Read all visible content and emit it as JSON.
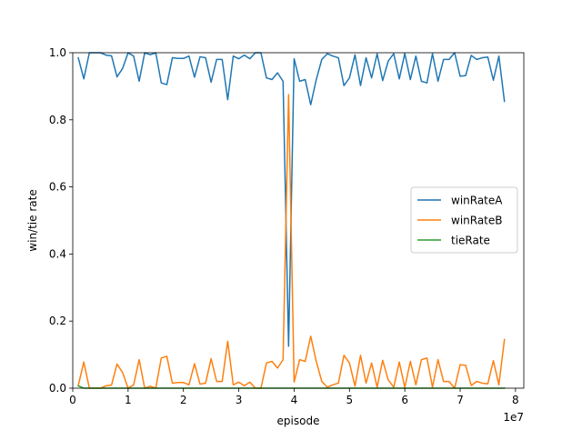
{
  "chart_data": {
    "type": "line",
    "xlabel": "episode",
    "ylabel": "win/tie rate",
    "x_offset_label": "1e7",
    "xlim": [
      0,
      8.15
    ],
    "ylim": [
      0,
      1.0
    ],
    "x_ticks": [
      "0",
      "1",
      "2",
      "3",
      "4",
      "5",
      "6",
      "7",
      "8"
    ],
    "y_ticks": [
      "0.0",
      "0.2",
      "0.4",
      "0.6",
      "0.8",
      "1.0"
    ],
    "grid": false,
    "legend_position": "center-right",
    "x": [
      0.1,
      0.2,
      0.3,
      0.4,
      0.5,
      0.6,
      0.7,
      0.8,
      0.9,
      1.0,
      1.1,
      1.2,
      1.3,
      1.4,
      1.5,
      1.6,
      1.7,
      1.8,
      1.9,
      2.0,
      2.1,
      2.2,
      2.3,
      2.4,
      2.5,
      2.6,
      2.7,
      2.8,
      2.9,
      3.0,
      3.1,
      3.2,
      3.3,
      3.4,
      3.5,
      3.6,
      3.7,
      3.8,
      3.9,
      4.0,
      4.1,
      4.2,
      4.3,
      4.4,
      4.5,
      4.6,
      4.7,
      4.8,
      4.9,
      5.0,
      5.1,
      5.2,
      5.3,
      5.4,
      5.5,
      5.6,
      5.7,
      5.8,
      5.9,
      6.0,
      6.1,
      6.2,
      6.3,
      6.4,
      6.5,
      6.6,
      6.7,
      6.8,
      6.9,
      7.0,
      7.1,
      7.2,
      7.3,
      7.4,
      7.5,
      7.6,
      7.7,
      7.8
    ],
    "series": [
      {
        "name": "winRateA",
        "color": "#1f77b4",
        "values": [
          0.985,
          0.922,
          1.0,
          1.0,
          1.0,
          0.993,
          0.991,
          0.928,
          0.953,
          1.0,
          0.99,
          0.915,
          1.0,
          0.994,
          1.0,
          0.91,
          0.905,
          0.985,
          0.983,
          0.983,
          0.99,
          0.927,
          0.988,
          0.985,
          0.912,
          0.98,
          0.98,
          0.86,
          0.99,
          0.982,
          0.993,
          0.982,
          1.0,
          1.0,
          0.925,
          0.92,
          0.94,
          0.915,
          0.125,
          0.982,
          0.915,
          0.92,
          0.845,
          0.92,
          0.98,
          0.997,
          0.99,
          0.985,
          0.902,
          0.925,
          0.994,
          0.902,
          0.985,
          0.925,
          0.997,
          0.917,
          0.975,
          0.997,
          0.922,
          0.998,
          0.92,
          0.99,
          0.915,
          0.91,
          0.997,
          0.915,
          0.98,
          0.98,
          1.0,
          0.93,
          0.932,
          0.992,
          0.98,
          0.985,
          0.987,
          0.918,
          0.99,
          0.855
        ]
      },
      {
        "name": "winRateB",
        "color": "#ff7f0e",
        "values": [
          0.008,
          0.078,
          0.0,
          0.0,
          0.0,
          0.007,
          0.009,
          0.072,
          0.047,
          0.0,
          0.01,
          0.085,
          0.0,
          0.006,
          0.0,
          0.09,
          0.095,
          0.015,
          0.017,
          0.017,
          0.01,
          0.073,
          0.012,
          0.015,
          0.088,
          0.02,
          0.02,
          0.14,
          0.01,
          0.018,
          0.007,
          0.018,
          0.0,
          0.0,
          0.075,
          0.08,
          0.06,
          0.085,
          0.875,
          0.018,
          0.085,
          0.08,
          0.155,
          0.08,
          0.02,
          0.003,
          0.01,
          0.015,
          0.098,
          0.075,
          0.006,
          0.098,
          0.015,
          0.075,
          0.003,
          0.083,
          0.025,
          0.003,
          0.078,
          0.002,
          0.08,
          0.01,
          0.085,
          0.09,
          0.003,
          0.085,
          0.02,
          0.02,
          0.0,
          0.07,
          0.068,
          0.008,
          0.02,
          0.015,
          0.013,
          0.082,
          0.01,
          0.145
        ]
      },
      {
        "name": "tieRate",
        "color": "#2ca02c",
        "values": [
          0.007,
          0.0,
          0.0,
          0.0,
          0.0,
          0.0,
          0.0,
          0.0,
          0.0,
          0.0,
          0.0,
          0.0,
          0.0,
          0.0,
          0.0,
          0.0,
          0.0,
          0.0,
          0.0,
          0.0,
          0.0,
          0.0,
          0.0,
          0.0,
          0.0,
          0.0,
          0.0,
          0.0,
          0.0,
          0.0,
          0.0,
          0.0,
          0.0,
          0.0,
          0.0,
          0.0,
          0.0,
          0.0,
          0.0,
          0.0,
          0.0,
          0.0,
          0.0,
          0.0,
          0.0,
          0.0,
          0.0,
          0.0,
          0.0,
          0.0,
          0.0,
          0.0,
          0.0,
          0.0,
          0.0,
          0.0,
          0.0,
          0.0,
          0.0,
          0.0,
          0.0,
          0.0,
          0.0,
          0.0,
          0.0,
          0.0,
          0.0,
          0.0,
          0.0,
          0.0,
          0.0,
          0.0,
          0.0,
          0.0,
          0.0,
          0.0,
          0.0,
          0.0
        ]
      }
    ]
  }
}
